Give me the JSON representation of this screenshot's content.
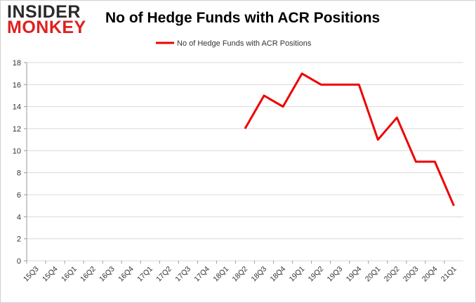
{
  "logo": {
    "line1": "INSIDER",
    "line2": "MONKEY"
  },
  "colors": {
    "series": "#ee0000",
    "grid": "#d9d9d9",
    "brand": "#e02020"
  },
  "chart_data": {
    "type": "line",
    "title": "No of Hedge Funds with ACR Positions",
    "categories": [
      "15Q3",
      "15Q4",
      "16Q1",
      "16Q2",
      "16Q3",
      "16Q4",
      "17Q1",
      "17Q2",
      "17Q3",
      "17Q4",
      "18Q1",
      "18Q2",
      "18Q3",
      "18Q4",
      "19Q1",
      "19Q2",
      "19Q3",
      "19Q4",
      "20Q1",
      "20Q2",
      "20Q3",
      "20Q4",
      "21Q1"
    ],
    "series": [
      {
        "name": "No of Hedge Funds with ACR Positions",
        "values": [
          null,
          null,
          null,
          null,
          null,
          null,
          null,
          null,
          null,
          null,
          null,
          12,
          15,
          14,
          17,
          16,
          16,
          16,
          11,
          13,
          9,
          9,
          5
        ]
      }
    ],
    "ylim": [
      0,
      18
    ],
    "yticks": [
      0,
      2,
      4,
      6,
      8,
      10,
      12,
      14,
      16,
      18
    ],
    "grid": true,
    "legend_position": "top-center",
    "xlabel": "",
    "ylabel": ""
  }
}
